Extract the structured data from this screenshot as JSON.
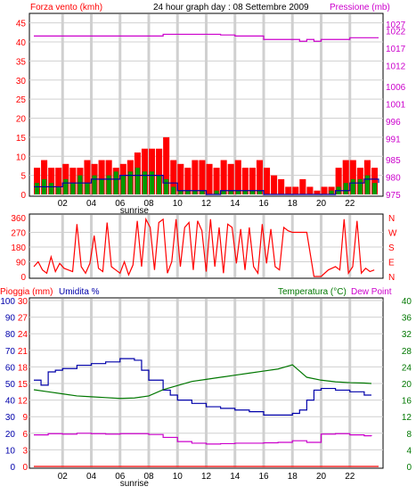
{
  "header": {
    "wind_label": "Forza vento (kmh)",
    "title": "24 hour graph day : 08 Settembre 2009",
    "pressure_label": "Pressione (mb)"
  },
  "colors": {
    "wind": "#ff0000",
    "pressure": "#cc00cc",
    "direction": "#ff0000",
    "rain": "#ff0000",
    "humidity": "#0000aa",
    "temperature": "#007700",
    "dewpoint": "#cc00cc",
    "gust_bars": "#ff0000",
    "avg_bars": "#009900"
  },
  "chart_data": [
    {
      "type": "bar",
      "id": "wind",
      "x_ticks": [
        "02",
        "04",
        "06",
        "08",
        "10",
        "12",
        "14",
        "16",
        "18",
        "20",
        "22"
      ],
      "x_note": "sunrise",
      "x_range": [
        0,
        24
      ],
      "y_left": {
        "label": "Forza vento (kmh)",
        "ticks": [
          0,
          5,
          10,
          15,
          20,
          25,
          30,
          35,
          40,
          45
        ],
        "range": [
          0,
          47.5
        ]
      },
      "y_right": {
        "label": "Pressione (mb)",
        "ticks": [
          975,
          980,
          985,
          991,
          996,
          1001,
          1006,
          1012,
          1017,
          1022,
          1027
        ],
        "range": [
          975,
          1027
        ]
      },
      "gust_series": {
        "name": "gust",
        "x": [
          0,
          0.5,
          1,
          1.5,
          2,
          2.5,
          3,
          3.5,
          4,
          4.5,
          5,
          5.5,
          6,
          6.5,
          7,
          7.5,
          8,
          8.5,
          9,
          9.5,
          10,
          10.5,
          11,
          11.5,
          12,
          12.5,
          13,
          13.5,
          14,
          14.5,
          15,
          15.5,
          16,
          16.5,
          17,
          17.5,
          18,
          18.5,
          19,
          19.5,
          20,
          20.5,
          21,
          21.5,
          22,
          22.5,
          23,
          23.5
        ],
        "values": [
          7,
          9,
          7,
          7,
          8,
          7,
          7,
          9,
          8,
          9,
          9,
          7,
          8,
          9,
          11,
          12,
          12,
          12,
          15,
          9,
          8,
          7,
          9,
          9,
          8,
          7,
          9,
          8,
          9,
          7,
          7,
          9,
          7,
          5,
          4,
          2,
          2,
          4,
          2,
          1,
          2,
          2,
          7,
          9,
          9,
          7,
          9,
          7
        ]
      },
      "average_series": {
        "name": "average",
        "x": [
          0,
          0.5,
          1,
          1.5,
          2,
          2.5,
          3,
          3.5,
          4,
          4.5,
          5,
          5.5,
          6,
          6.5,
          7,
          7.5,
          8,
          8.5,
          9,
          9.5,
          10,
          10.5,
          11,
          11.5,
          12,
          12.5,
          13,
          13.5,
          14,
          14.5,
          15,
          15.5,
          16,
          16.5,
          17,
          17.5,
          18,
          18.5,
          19,
          19.5,
          20,
          20.5,
          21,
          21.5,
          22,
          22.5,
          23,
          23.5
        ],
        "values": [
          3,
          4,
          3,
          2,
          4,
          3,
          5,
          3,
          5,
          4,
          5,
          6,
          5,
          6,
          7,
          6,
          6,
          5,
          4,
          2,
          1,
          1,
          1,
          1,
          0,
          1,
          1,
          1,
          1,
          1,
          1,
          1,
          0,
          0,
          0,
          0,
          0,
          0,
          0,
          0,
          0,
          1,
          2,
          3,
          4,
          4,
          5,
          3
        ]
      },
      "speed_series": {
        "name": "speed",
        "x": [
          0,
          1,
          2,
          3,
          4,
          5,
          6,
          7,
          8,
          9,
          10,
          11,
          12,
          13,
          14,
          15,
          16,
          17,
          18,
          19,
          20,
          21,
          22,
          23,
          24
        ],
        "values": [
          2,
          2,
          3,
          3,
          4,
          4,
          5,
          5,
          5,
          3,
          1,
          1,
          0,
          1,
          1,
          1,
          0,
          0,
          0,
          0,
          0,
          1,
          3,
          4,
          3
        ]
      },
      "pressure_series": {
        "name": "pressure",
        "x": [
          0,
          2,
          4,
          6,
          8,
          9,
          10,
          11,
          12,
          13,
          14,
          15,
          16,
          17,
          18,
          18.5,
          19,
          19.5,
          20,
          21,
          22,
          23,
          24
        ],
        "values": [
          1020.5,
          1020.5,
          1020.5,
          1020.5,
          1020.5,
          1021,
          1021,
          1021,
          1021,
          1020.8,
          1020.5,
          1020.5,
          1019.5,
          1019.5,
          1019.5,
          1019,
          1019.5,
          1019,
          1019.5,
          1019.5,
          1020,
          1020,
          1020
        ]
      }
    },
    {
      "type": "line",
      "id": "direction",
      "x_range": [
        0,
        24
      ],
      "y_left": {
        "ticks": [
          0,
          90,
          180,
          270,
          360
        ],
        "range": [
          0,
          360
        ]
      },
      "y_right_labels": [
        "N",
        "W",
        "S",
        "E",
        "N"
      ],
      "series": [
        {
          "name": "direction",
          "x": [
            0,
            0.3,
            0.6,
            0.9,
            1.2,
            1.5,
            1.8,
            2.1,
            2.4,
            2.7,
            3,
            3.3,
            3.6,
            3.9,
            4.2,
            4.5,
            4.8,
            5.1,
            5.4,
            5.7,
            6,
            6.3,
            6.6,
            6.9,
            7.2,
            7.5,
            7.8,
            8.1,
            8.4,
            8.7,
            9,
            9.3,
            9.6,
            9.9,
            10.2,
            10.5,
            10.8,
            11.1,
            11.4,
            11.7,
            12,
            12.3,
            12.6,
            12.9,
            13.2,
            13.5,
            13.8,
            14.1,
            14.4,
            14.7,
            15,
            15.3,
            15.6,
            15.9,
            16.2,
            16.5,
            16.8,
            17.1,
            17.4,
            17.7,
            18,
            18.5,
            19,
            19.5,
            20,
            20.5,
            21,
            21.3,
            21.6,
            21.9,
            22.2,
            22.5,
            22.8,
            23.1,
            23.4,
            23.7
          ],
          "values": [
            60,
            90,
            40,
            20,
            120,
            30,
            80,
            50,
            40,
            30,
            320,
            60,
            20,
            80,
            250,
            50,
            30,
            330,
            60,
            40,
            20,
            90,
            10,
            70,
            340,
            60,
            350,
            300,
            40,
            330,
            350,
            20,
            90,
            350,
            60,
            300,
            330,
            40,
            340,
            280,
            30,
            350,
            60,
            300,
            20,
            320,
            300,
            80,
            290,
            40,
            300,
            60,
            20,
            320,
            80,
            290,
            60,
            40,
            300,
            280,
            270,
            270,
            270,
            0,
            0,
            40,
            60,
            40,
            350,
            20,
            60,
            340,
            20,
            50,
            30,
            40
          ]
        }
      ]
    },
    {
      "type": "line",
      "id": "rain_humidity_temp",
      "x_ticks": [
        "02",
        "04",
        "06",
        "08",
        "10",
        "12",
        "14",
        "16",
        "18",
        "20",
        "22"
      ],
      "x_note": "sunrise",
      "x_range": [
        0,
        24
      ],
      "y_left_rain": {
        "label": "Pioggia (mm)",
        "ticks": [
          0,
          3,
          6,
          9,
          12,
          15,
          18,
          21,
          24,
          27,
          30
        ],
        "range": [
          0,
          30
        ]
      },
      "y_left_humidity": {
        "label": "Umidita %",
        "ticks": [
          0,
          10,
          20,
          30,
          40,
          50,
          60,
          70,
          80,
          90,
          100
        ],
        "range": [
          0,
          100
        ]
      },
      "y_right": {
        "label": "Temperatura (°C)",
        "label2": "Dew Point",
        "ticks": [
          0,
          4,
          8,
          12,
          16,
          20,
          24,
          28,
          32,
          36,
          40
        ],
        "range": [
          0,
          40
        ]
      },
      "series": [
        {
          "name": "humidity",
          "x": [
            0,
            0.5,
            1,
            1.5,
            2,
            3,
            4,
            5,
            6,
            6.5,
            7,
            7.5,
            8,
            9,
            9.5,
            10,
            11,
            12,
            13,
            14,
            15,
            16,
            17,
            18,
            18.5,
            19,
            19.5,
            20,
            21,
            22,
            23,
            23.5
          ],
          "values": [
            52,
            49,
            57,
            58,
            59,
            61,
            62,
            63,
            65,
            65,
            64,
            58,
            52,
            46,
            43,
            40,
            38,
            36,
            35,
            34,
            33,
            31,
            31,
            32,
            34,
            40,
            46,
            47,
            46,
            45,
            43,
            43
          ]
        },
        {
          "name": "temperature",
          "x": [
            0,
            1,
            2,
            3,
            4,
            5,
            6,
            7,
            8,
            9,
            10,
            11,
            12,
            13,
            14,
            15,
            16,
            17,
            17.5,
            18,
            18.5,
            19,
            20,
            21,
            22,
            23,
            23.5
          ],
          "values": [
            18.5,
            18,
            17.5,
            17,
            16.8,
            16.6,
            16.4,
            16.5,
            17,
            18.5,
            19.5,
            20.5,
            21,
            21.5,
            22,
            22.5,
            23,
            23.5,
            24,
            24.5,
            23,
            21.5,
            20.8,
            20.4,
            20.2,
            20.1,
            20
          ]
        },
        {
          "name": "dewpoint",
          "x": [
            0,
            1,
            2,
            3,
            4,
            5,
            6,
            7,
            8,
            9,
            10,
            11,
            12,
            13,
            14,
            15,
            16,
            17,
            18,
            19,
            20,
            21,
            22,
            23,
            23.5
          ],
          "values": [
            7.6,
            7.9,
            7.8,
            8,
            7.9,
            7.8,
            7.9,
            7.9,
            7.7,
            7,
            6,
            5.6,
            5.4,
            5.5,
            5.6,
            5.6,
            5.7,
            5.8,
            6.2,
            5.8,
            7.8,
            7.9,
            7.6,
            7.4,
            7.3
          ]
        },
        {
          "name": "rain",
          "x": [
            0,
            24
          ],
          "values": [
            0,
            0
          ]
        }
      ]
    }
  ]
}
